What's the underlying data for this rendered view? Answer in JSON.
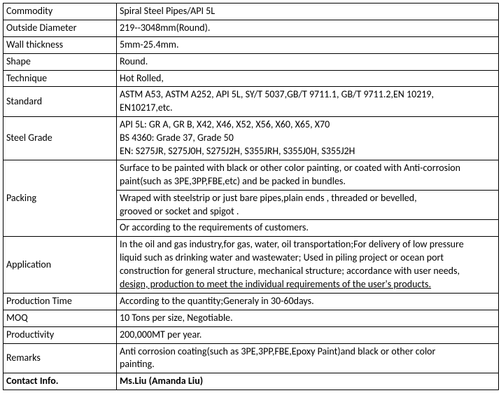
{
  "table": {
    "rows": {
      "commodity": {
        "label": "Commodity",
        "value": "Spiral Steel Pipes/API 5L"
      },
      "outsideDiameter": {
        "label": "Outside Diameter",
        "value": "219--3048mm(Round)."
      },
      "wallThickness": {
        "label": "Wall thickness",
        "value": "5mm-25.4mm."
      },
      "shape": {
        "label": "Shape",
        "value": "Round."
      },
      "technique": {
        "label": "Technique",
        "value": "Hot Rolled,"
      },
      "standard": {
        "label": "Standard",
        "line1": "ASTM A53, ASTM A252, API 5L, SY/T 5037,GB/T 9711.1, GB/T 9711.2,EN 10219,",
        "line2": "EN10217,etc."
      },
      "steelGrade": {
        "label": "Steel Grade",
        "line1": "API 5L: GR A, GR B, X42, X46, X52, X56, X60, X65, X70",
        "line2": "BS 4360: Grade 37, Grade 50",
        "line3": "EN: S275JR, S275J0H, S275J2H, S355JRH, S355J0H, S355J2H"
      },
      "packing": {
        "label": "Packing",
        "sub1line1": "Surface  to be painted with black or other color painting, or coated with Anti-corrosion",
        "sub1line2": "paint(such as 3PE,3PP,FBE,etc) and be packed in bundles.",
        "sub2line1": "Wraped with steelstrip or just bare pipes,plain ends , threaded or bevelled,",
        "sub2line2": "grooved or socket and spigot .",
        "sub3": "Or according to the requirements of customers."
      },
      "application": {
        "label": "Application",
        "line1": "In the oil and gas industry,for gas, water, oil transportation;For delivery of low pressure",
        "line2": "liquid such as drinking water and wastewater; Used in piling project or ocean port",
        "line3": "construction for general structure, mechanical structure; accordance with user needs,",
        "line4": "design, production to meet the individual requirements of the user's products."
      },
      "productionTime": {
        "label": "Production Time",
        "value": "According to the quantity;Generaly in 30-60days."
      },
      "moq": {
        "label": "MOQ",
        "value": "10 Tons per size, Negotiable."
      },
      "productivity": {
        "label": "Productivity",
        "value": "200,000MT per year."
      },
      "remarks": {
        "label": "Remarks",
        "line1": "Anti corrosion coating(such as 3PE,3PP,FBE,Epoxy Paint)and black or other color",
        "line2": "painting."
      },
      "contactInfo": {
        "label": "Contact Info.",
        "value": "Ms.Liu (Amanda Liu)"
      }
    }
  }
}
